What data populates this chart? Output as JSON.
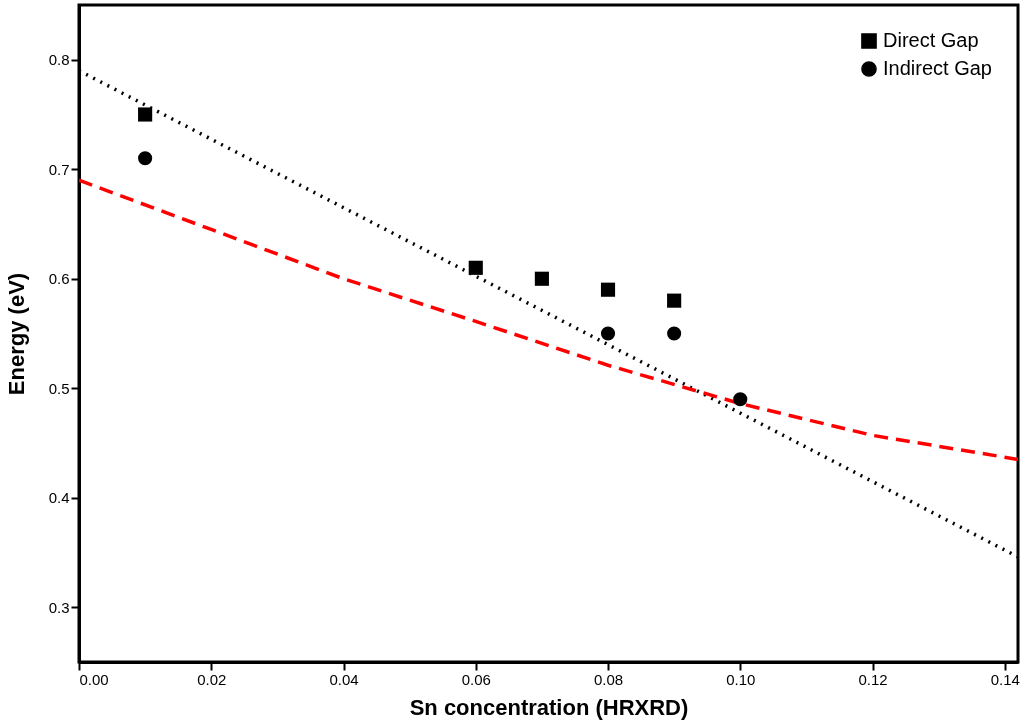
{
  "chart_data": {
    "type": "scatter",
    "xlabel": "Sn concentration (HRXRD)",
    "ylabel": "Energy (eV)",
    "xlim": [
      0,
      0.142
    ],
    "xticks": [
      {
        "value": 0,
        "label": "0.00"
      },
      0.02,
      0.04,
      0.06,
      0.08,
      {
        "value": 0.1,
        "label": "0.10"
      },
      0.12,
      0.14
    ],
    "ylim": [
      0.25,
      0.85
    ],
    "yticks": [
      0.3,
      0.4,
      0.5,
      0.6,
      0.7,
      0.8
    ],
    "grid": false,
    "legend": "top right",
    "series": [
      {
        "name": "Direct Gap",
        "color": "#000000",
        "marker": "square",
        "x": [
          0.01,
          0.06,
          0.07,
          0.08,
          0.09
        ],
        "values": [
          0.75,
          0.61,
          0.6,
          0.59,
          0.58
        ]
      },
      {
        "name": "Indirect Gap",
        "color": "#000000",
        "marker": "circle",
        "x": [
          0.01,
          0.08,
          0.09,
          0.1
        ],
        "values": [
          0.71,
          0.55,
          0.55,
          0.49
        ]
      },
      {
        "type": "line",
        "color": "#000000",
        "line_style": "dotted",
        "x": [
          0,
          0.142
        ],
        "values": [
          0.79,
          0.346
        ]
      },
      {
        "type": "line",
        "color": "#ff0000",
        "line_style": "dashed",
        "x": [
          0,
          0.02,
          0.04,
          0.06,
          0.08,
          0.1,
          0.12,
          0.142
        ],
        "values": [
          0.69,
          0.645,
          0.6,
          0.561,
          0.521,
          0.486,
          0.457,
          0.435
        ]
      }
    ]
  }
}
